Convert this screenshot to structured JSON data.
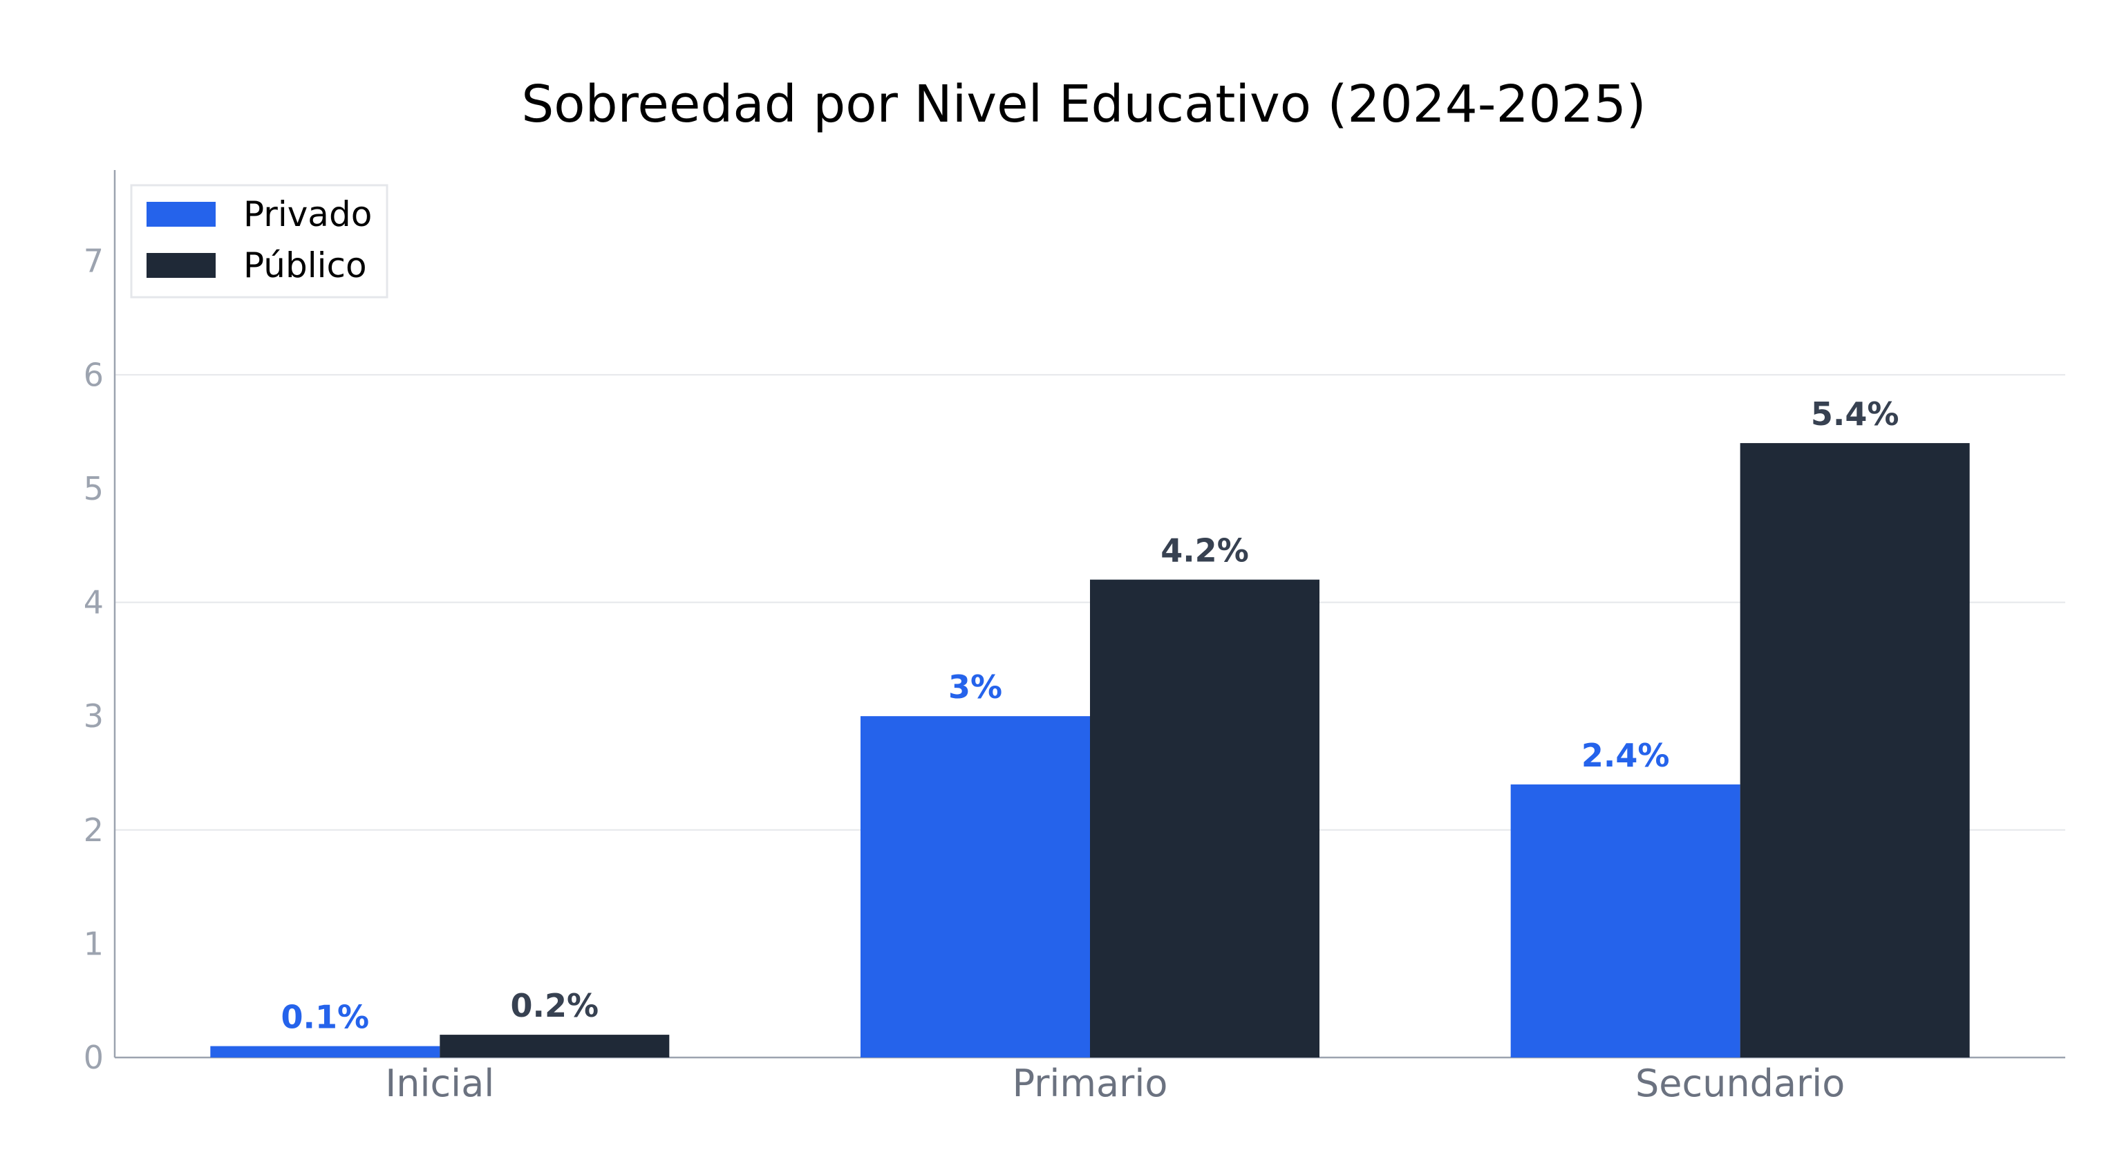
{
  "chart_data": {
    "type": "bar",
    "title": "Sobreedad por Nivel Educativo (2024-2025)",
    "xlabel": "",
    "ylabel": "",
    "categories": [
      "Inicial",
      "Primario",
      "Secundario"
    ],
    "series": [
      {
        "name": "Privado",
        "color": "#2563eb",
        "label_color": "#2563eb",
        "values": [
          0.1,
          3,
          2.4
        ],
        "labels": [
          "0.1%",
          "3%",
          "2.4%"
        ]
      },
      {
        "name": "Público",
        "color": "#1f2937",
        "label_color": "#374151",
        "values": [
          0.2,
          4.2,
          5.4
        ],
        "labels": [
          "0.2%",
          "4.2%",
          "5.4%"
        ]
      }
    ],
    "ylim": [
      0,
      7.8
    ],
    "yticks": [
      0,
      1,
      2,
      3,
      4,
      5,
      6,
      7
    ],
    "y_grid_lines": [
      2,
      4,
      6
    ],
    "legend_position": "top-left",
    "colors": {
      "axis": "#9ca3af",
      "grid": "#e5e7eb",
      "legend_border": "#e5e7eb"
    }
  }
}
